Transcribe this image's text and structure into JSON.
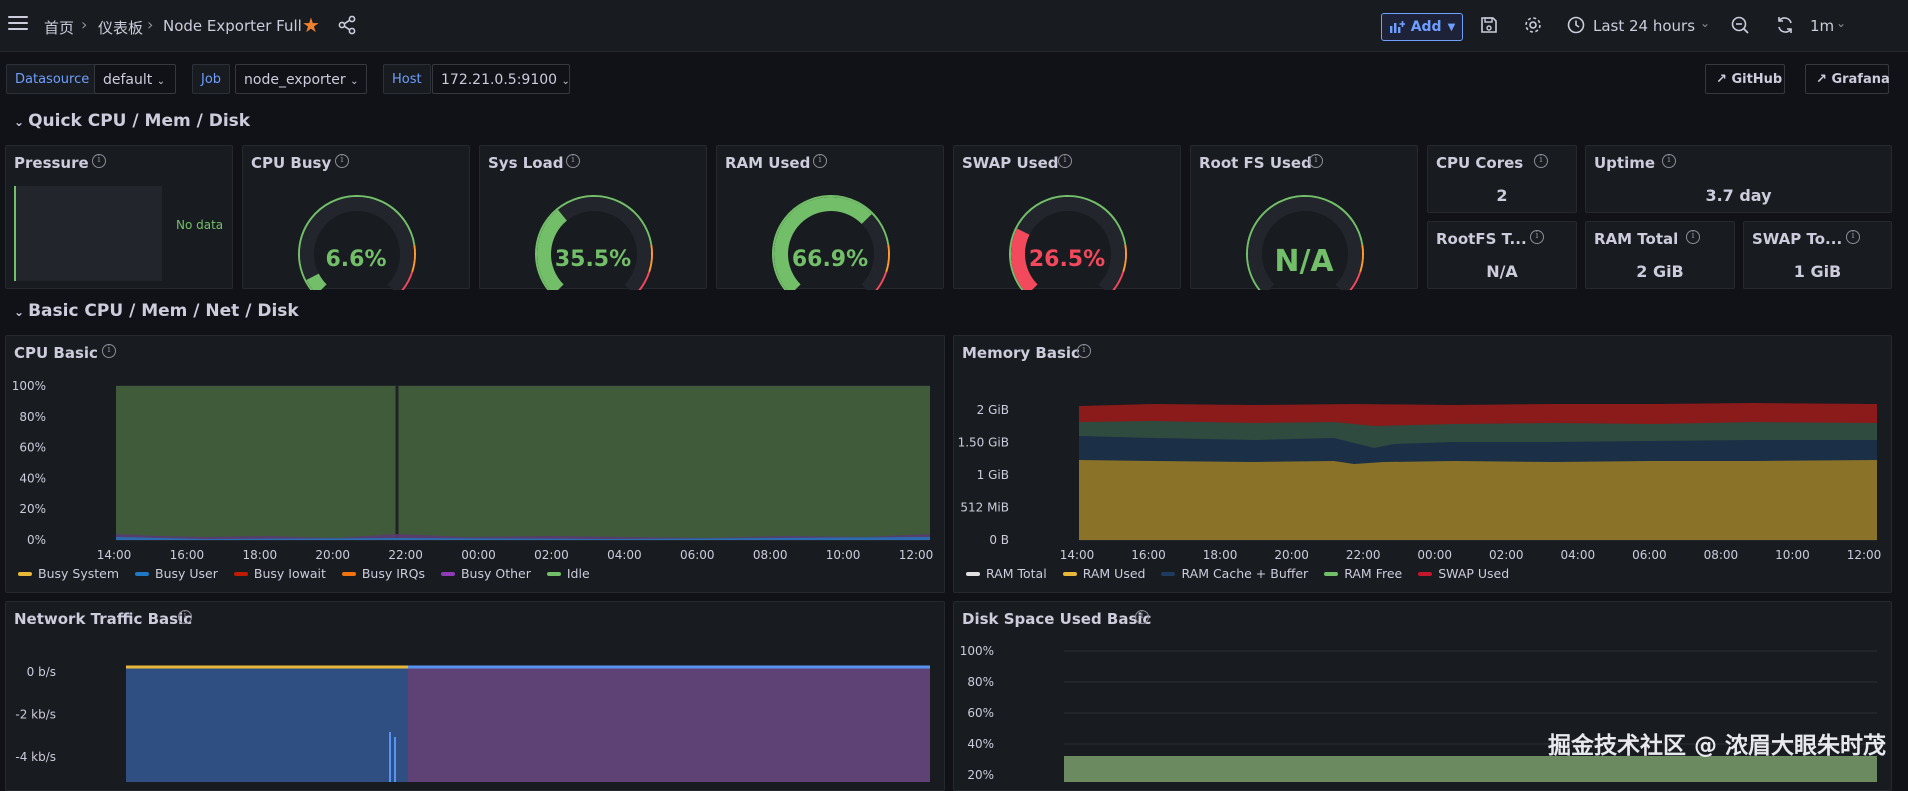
{
  "breadcrumb": {
    "home": "首页",
    "dashboards": "仪表板",
    "current": "Node Exporter Full"
  },
  "toolbar": {
    "add_label": "Add",
    "time_range": "Last 24 hours",
    "refresh_interval": "1m"
  },
  "variables": [
    {
      "label": "Datasource",
      "value": "default"
    },
    {
      "label": "Job",
      "value": "node_exporter"
    },
    {
      "label": "Host",
      "value": "172.21.0.5:9100"
    }
  ],
  "links": {
    "github": "GitHub",
    "grafana": "Grafana"
  },
  "rows": {
    "quick": "Quick CPU / Mem / Disk",
    "basic": "Basic CPU / Mem / Net / Disk"
  },
  "panels": {
    "pressure": {
      "title": "Pressure",
      "value": "No data"
    },
    "cpu_busy": {
      "title": "CPU Busy",
      "display": "6.6%",
      "fraction": 0.066,
      "color": "#73bf69"
    },
    "sys_load": {
      "title": "Sys Load",
      "display": "35.5%",
      "fraction": 0.355,
      "color": "#73bf69"
    },
    "ram_used": {
      "title": "RAM Used",
      "display": "66.9%",
      "fraction": 0.669,
      "color": "#73bf69"
    },
    "swap_used": {
      "title": "SWAP Used",
      "display": "26.5%",
      "fraction": 0.265,
      "color": "#f2495c"
    },
    "root_fs": {
      "title": "Root FS Used",
      "display": "N/A",
      "fraction": 0,
      "color": "#73bf69"
    },
    "cpu_cores": {
      "title": "CPU Cores",
      "value": "2"
    },
    "uptime": {
      "title": "Uptime",
      "value": "3.7 day"
    },
    "rootfs_total": {
      "title": "RootFS T...",
      "value": "N/A"
    },
    "ram_total": {
      "title": "RAM Total",
      "value": "2 GiB"
    },
    "swap_total": {
      "title": "SWAP To...",
      "value": "1 GiB"
    },
    "cpu_basic": {
      "title": "CPU Basic"
    },
    "memory_basic": {
      "title": "Memory Basic"
    },
    "network_basic": {
      "title": "Network Traffic Basic"
    },
    "disk_basic": {
      "title": "Disk Space Used Basic"
    }
  },
  "x_ticks": [
    "14:00",
    "16:00",
    "18:00",
    "20:00",
    "22:00",
    "00:00",
    "02:00",
    "04:00",
    "06:00",
    "08:00",
    "10:00",
    "12:00"
  ],
  "chart_data": [
    {
      "type": "area",
      "name": "CPU Basic",
      "y_ticks": [
        "100%",
        "80%",
        "60%",
        "40%",
        "20%",
        "0%"
      ],
      "ylim": [
        0,
        100
      ],
      "series": [
        {
          "name": "Busy System",
          "color": "#eab839"
        },
        {
          "name": "Busy User",
          "color": "#1f78c1"
        },
        {
          "name": "Busy Iowait",
          "color": "#bf1b00"
        },
        {
          "name": "Busy IRQs",
          "color": "#f2730f"
        },
        {
          "name": "Busy Other",
          "color": "#8f3bb8"
        },
        {
          "name": "Idle",
          "color": "#73bf69"
        }
      ]
    },
    {
      "type": "area",
      "name": "Memory Basic",
      "y_ticks": [
        "2 GiB",
        "1.50 GiB",
        "1 GiB",
        "512 MiB",
        "0 B"
      ],
      "series": [
        {
          "name": "RAM Total",
          "color": "#e0e0e0"
        },
        {
          "name": "RAM Used",
          "color": "#eab839"
        },
        {
          "name": "RAM Cache + Buffer",
          "color": "#1f3a5f"
        },
        {
          "name": "RAM Free",
          "color": "#73bf69"
        },
        {
          "name": "SWAP Used",
          "color": "#c4162a"
        }
      ]
    },
    {
      "type": "area",
      "name": "Network Traffic Basic",
      "y_ticks": [
        "0 b/s",
        "-2 kb/s",
        "-4 kb/s"
      ]
    },
    {
      "type": "area",
      "name": "Disk Space Used Basic",
      "y_ticks": [
        "100%",
        "80%",
        "60%",
        "40%",
        "20%"
      ]
    }
  ],
  "watermark": "掘金技术社区 @ 浓眉大眼朱时茂"
}
